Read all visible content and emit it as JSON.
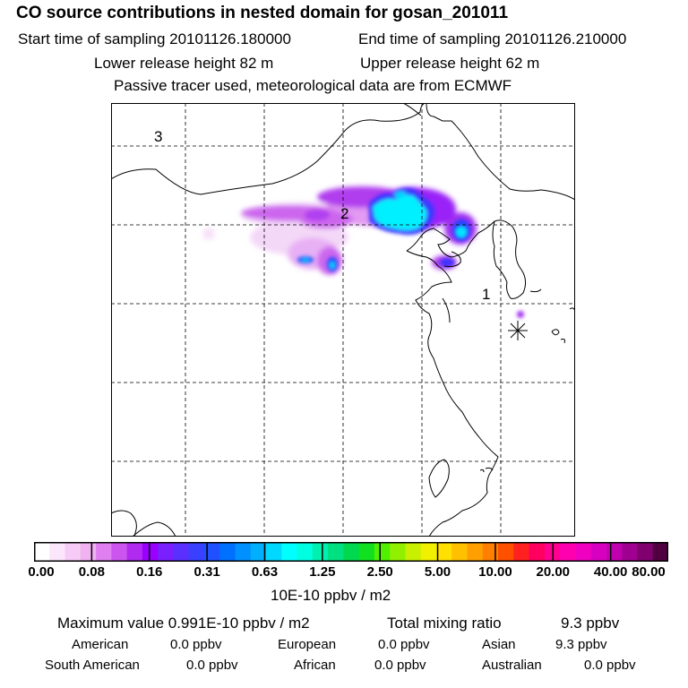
{
  "header": {
    "title": "CO  source contributions in nested domain for gosan_201011",
    "start_time": "Start time of sampling 20101126.180000",
    "end_time": "End time of sampling 20101126.210000",
    "lower_release": "Lower release height   82 m",
    "upper_release": "Upper release height   62 m",
    "tracer_note": "Passive tracer used, meteorological data are from ECMWF"
  },
  "map": {
    "region_labels": [
      "3",
      "2",
      "1"
    ],
    "receptor_marker": "receptor-asterisk"
  },
  "colorbar": {
    "ticks": [
      "0.00",
      "0.08",
      "0.16",
      "0.31",
      "0.63",
      "1.25",
      "2.50",
      "5.00",
      "10.00",
      "20.00",
      "40.00",
      "80.00"
    ],
    "units": "10E-10 ppbv / m2",
    "colors": [
      "#ffffff",
      "#fbe6fb",
      "#f6ccf6",
      "#f0b2f0",
      "#e080f0",
      "#cc55f0",
      "#b02af0",
      "#9a00ff",
      "#7a20ff",
      "#5a30ff",
      "#3a40ff",
      "#2050ff",
      "#0070ff",
      "#0090ff",
      "#00b0ff",
      "#00d8ff",
      "#00ffff",
      "#00ffe0",
      "#00f0b0",
      "#00e080",
      "#00d850",
      "#10e020",
      "#50f000",
      "#90f000",
      "#c8f000",
      "#f0f000",
      "#ffe000",
      "#ffc000",
      "#ffa000",
      "#ff8000",
      "#ff5000",
      "#ff2020",
      "#ff0060",
      "#ff0090",
      "#ff00b0",
      "#f000c0",
      "#d800c0",
      "#c000b0",
      "#a00090",
      "#800070",
      "#500040"
    ]
  },
  "stats": {
    "maximum": "Maximum value  0.991E-10 ppbv / m2",
    "total_label": "Total mixing ratio",
    "total_value": "9.3 ppbv",
    "regions": [
      {
        "label": "American",
        "value": "0.0 ppbv"
      },
      {
        "label": "European",
        "value": "0.0 ppbv"
      },
      {
        "label": "Asian",
        "value": "9.3 ppbv"
      },
      {
        "label": "South American",
        "value": "0.0 ppbv"
      },
      {
        "label": "African",
        "value": "0.0 ppbv"
      },
      {
        "label": "Australian",
        "value": "0.0 ppbv"
      }
    ]
  }
}
